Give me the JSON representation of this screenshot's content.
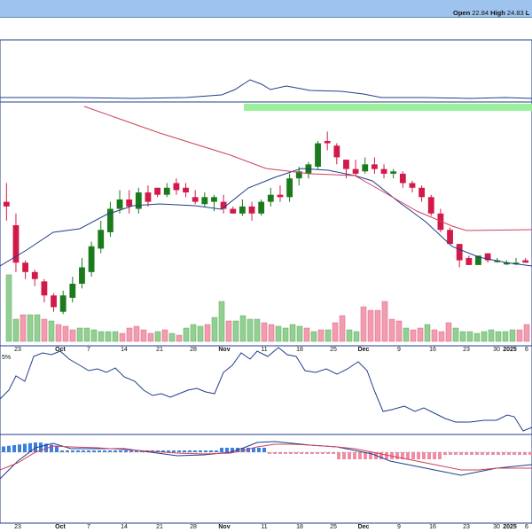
{
  "header": {
    "open_label": "Open",
    "open_value": "22.84",
    "high_label": "High",
    "high_value": "24.83",
    "truncated_label": "L"
  },
  "panels": {
    "rsi_label": "5%"
  },
  "colors": {
    "background": "#ffffff",
    "header_bg": "#9ec4ee",
    "panel_border": "#1f3e8a",
    "up_candle": "#1b7a1b",
    "down_candle": "#d21a4a",
    "vol_up": "#92d092",
    "vol_down": "#f29cb0",
    "ma_fast": "#1f3e8a",
    "ma_slow": "#d0405a",
    "resistance_band": "#90ee90",
    "macd_line": "#1f3e8a",
    "signal_line": "#d0405a",
    "hist_pos": "#3d7fe0",
    "hist_neg": "#f08ca4"
  },
  "chart_data": {
    "type": "candlestick",
    "x_ticks": [
      "23",
      "Oct",
      "7",
      "14",
      "21",
      "28",
      "Nov",
      "11",
      "18",
      "25",
      "Dec",
      "9",
      "16",
      "23",
      "30",
      "2025",
      "6"
    ],
    "bold_ticks": [
      "Oct",
      "Nov",
      "Dec",
      "2025"
    ],
    "resistance_zone": true,
    "candles": [
      [
        0.6,
        0.58,
        0.68,
        0.52
      ],
      [
        0.5,
        0.34,
        0.55,
        0.3
      ],
      [
        0.34,
        0.3,
        0.35,
        0.27
      ],
      [
        0.3,
        0.27,
        0.31,
        0.24
      ],
      [
        0.26,
        0.2,
        0.27,
        0.17
      ],
      [
        0.2,
        0.15,
        0.21,
        0.13
      ],
      [
        0.13,
        0.2,
        0.22,
        0.12
      ],
      [
        0.19,
        0.25,
        0.28,
        0.17
      ],
      [
        0.25,
        0.32,
        0.36,
        0.23
      ],
      [
        0.3,
        0.41,
        0.43,
        0.28
      ],
      [
        0.4,
        0.48,
        0.52,
        0.38
      ],
      [
        0.47,
        0.57,
        0.6,
        0.45
      ],
      [
        0.57,
        0.61,
        0.65,
        0.55
      ],
      [
        0.61,
        0.58,
        0.65,
        0.55
      ],
      [
        0.57,
        0.64,
        0.66,
        0.55
      ],
      [
        0.64,
        0.6,
        0.67,
        0.58
      ],
      [
        0.66,
        0.63,
        0.66,
        0.62
      ],
      [
        0.63,
        0.66,
        0.68,
        0.62
      ],
      [
        0.68,
        0.65,
        0.7,
        0.63
      ],
      [
        0.66,
        0.64,
        0.68,
        0.62
      ],
      [
        0.62,
        0.6,
        0.65,
        0.59
      ],
      [
        0.59,
        0.62,
        0.64,
        0.58
      ],
      [
        0.6,
        0.62,
        0.63,
        0.56
      ],
      [
        0.6,
        0.57,
        0.63,
        0.55
      ],
      [
        0.57,
        0.55,
        0.58,
        0.55
      ],
      [
        0.55,
        0.58,
        0.61,
        0.54
      ],
      [
        0.58,
        0.55,
        0.6,
        0.52
      ],
      [
        0.55,
        0.6,
        0.61,
        0.54
      ],
      [
        0.6,
        0.63,
        0.66,
        0.58
      ],
      [
        0.63,
        0.62,
        0.67,
        0.6
      ],
      [
        0.62,
        0.7,
        0.72,
        0.6
      ],
      [
        0.7,
        0.73,
        0.75,
        0.67
      ],
      [
        0.72,
        0.76,
        0.77,
        0.7
      ],
      [
        0.75,
        0.85,
        0.86,
        0.74
      ],
      [
        0.86,
        0.85,
        0.9,
        0.82
      ],
      [
        0.84,
        0.79,
        0.85,
        0.76
      ],
      [
        0.78,
        0.74,
        0.78,
        0.7
      ],
      [
        0.74,
        0.72,
        0.78,
        0.71
      ],
      [
        0.73,
        0.76,
        0.79,
        0.72
      ],
      [
        0.76,
        0.74,
        0.79,
        0.72
      ],
      [
        0.74,
        0.72,
        0.76,
        0.7
      ],
      [
        0.72,
        0.73,
        0.74,
        0.7
      ],
      [
        0.72,
        0.68,
        0.73,
        0.66
      ],
      [
        0.68,
        0.66,
        0.69,
        0.64
      ],
      [
        0.66,
        0.62,
        0.67,
        0.6
      ],
      [
        0.62,
        0.55,
        0.63,
        0.54
      ],
      [
        0.55,
        0.48,
        0.57,
        0.47
      ],
      [
        0.48,
        0.42,
        0.49,
        0.42
      ],
      [
        0.42,
        0.35,
        0.42,
        0.32
      ],
      [
        0.36,
        0.33,
        0.37,
        0.33
      ],
      [
        0.33,
        0.37,
        0.37,
        0.33
      ],
      [
        0.38,
        0.35,
        0.38,
        0.34
      ],
      [
        0.35,
        0.35,
        0.36,
        0.34
      ],
      [
        0.34,
        0.34,
        0.35,
        0.33
      ],
      [
        0.34,
        0.34,
        0.36,
        0.33
      ],
      [
        0.35,
        0.34,
        0.36,
        0.34
      ]
    ],
    "price_ylim": [
      0,
      1
    ]
  }
}
